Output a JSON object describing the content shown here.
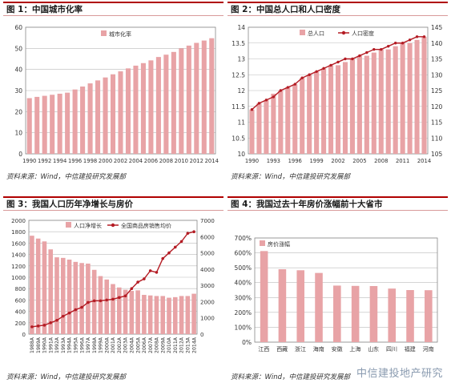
{
  "panels": [
    {
      "title": "图 1：中国城市化率",
      "source": "资料来源：Wind，中信建投研究发展部"
    },
    {
      "title": "图 2：中国总人口和人口密度",
      "source": "资料来源：Wind，中信建投研究发展部"
    },
    {
      "title": "图 3：我国人口历年净增长与房价",
      "source": "资料来源：Wind，中信建投研究发展部"
    },
    {
      "title": "图 4：我国过去十年房价涨幅前十大省市",
      "source": "资料来源：Wind，中信建投研究发展部"
    }
  ],
  "watermark": "中信建投地产研究",
  "colors": {
    "bar": "#e8a3a6",
    "line": "#b41c24",
    "rule": "#b00000"
  },
  "chart_data": [
    {
      "type": "bar",
      "legend": [
        "城市化率"
      ],
      "x": [
        1990,
        1991,
        1992,
        1993,
        1994,
        1995,
        1996,
        1997,
        1998,
        1999,
        2000,
        2001,
        2002,
        2003,
        2004,
        2005,
        2006,
        2007,
        2008,
        2009,
        2010,
        2011,
        2012,
        2013,
        2014
      ],
      "xticks": [
        "1990",
        "1992",
        "1994",
        "1996",
        "1998",
        "2000",
        "2002",
        "2004",
        "2006",
        "2008",
        "2010",
        "2012",
        "2014"
      ],
      "values": [
        26.4,
        27.0,
        27.5,
        28.0,
        28.5,
        29.0,
        30.5,
        31.9,
        33.4,
        34.8,
        36.2,
        37.7,
        39.1,
        40.5,
        41.8,
        43.0,
        44.3,
        45.9,
        47.0,
        48.3,
        50.0,
        51.3,
        52.6,
        53.7,
        54.8
      ],
      "ylim": [
        0,
        60
      ],
      "yticks": [
        0,
        10,
        20,
        30,
        40,
        50,
        60
      ]
    },
    {
      "type": "bar+line",
      "legend": [
        "总人口",
        "人口密度"
      ],
      "x": [
        1990,
        1991,
        1992,
        1993,
        1994,
        1995,
        1996,
        1997,
        1998,
        1999,
        2000,
        2001,
        2002,
        2003,
        2004,
        2005,
        2006,
        2007,
        2008,
        2009,
        2010,
        2011,
        2012,
        2013,
        2014
      ],
      "xticks": [
        "1990",
        "1993",
        "1996",
        "1999",
        "2002",
        "2005",
        "2008",
        "2011",
        "2014"
      ],
      "bar_values": [
        11.4,
        11.6,
        11.7,
        11.9,
        12.0,
        12.1,
        12.2,
        12.4,
        12.5,
        12.6,
        12.7,
        12.8,
        12.8,
        12.9,
        13.0,
        13.1,
        13.1,
        13.2,
        13.3,
        13.3,
        13.4,
        13.5,
        13.5,
        13.6,
        13.7
      ],
      "line_values": [
        119,
        121,
        122,
        123,
        125,
        126,
        127,
        129,
        130,
        131,
        132,
        133,
        134,
        135,
        135,
        136,
        137,
        138,
        138,
        139,
        140,
        140,
        141,
        142,
        142
      ],
      "ylim_left": [
        10,
        14
      ],
      "yticks_left": [
        10,
        10.5,
        11,
        11.5,
        12,
        12.5,
        13,
        13.5,
        14
      ],
      "ylim_right": [
        105,
        145
      ],
      "yticks_right": [
        105,
        110,
        115,
        120,
        125,
        130,
        135,
        140,
        145
      ]
    },
    {
      "type": "bar+line",
      "legend": [
        "人口净增长",
        "全国商品房销售均价"
      ],
      "x": [
        "1988A",
        "1989A",
        "1990A",
        "1991A",
        "1992A",
        "1993A",
        "1994A",
        "1995A",
        "1996A",
        "1997A",
        "1998A",
        "1999A",
        "2000A",
        "2001A",
        "2002A",
        "2003A",
        "2004A",
        "2005A",
        "2006A",
        "2007A",
        "2008A",
        "2009A",
        "2010A",
        "2011A",
        "2012A",
        "2013A",
        "2014A"
      ],
      "xticks": [
        "1988A",
        "1989A",
        "1990A",
        "1991A",
        "1992A",
        "1993A",
        "1994A",
        "1995A",
        "1996A",
        "1997A",
        "1998A",
        "1999A",
        "2000A",
        "2001A",
        "2002A",
        "2003A",
        "2004A",
        "2005A",
        "2006A",
        "2007A",
        "2008A",
        "2009A",
        "2010A",
        "2011A",
        "2012A",
        "2013A",
        "2014A"
      ],
      "bar_values": [
        1730,
        1680,
        1630,
        1490,
        1350,
        1340,
        1310,
        1270,
        1250,
        1240,
        1130,
        1020,
        960,
        880,
        820,
        780,
        760,
        770,
        690,
        680,
        670,
        670,
        640,
        650,
        670,
        670,
        710
      ],
      "line_values": [
        450,
        500,
        550,
        700,
        850,
        1100,
        1300,
        1500,
        1650,
        1950,
        2050,
        2050,
        2100,
        2150,
        2250,
        2350,
        2800,
        3200,
        3400,
        3900,
        3800,
        4650,
        5000,
        5350,
        5700,
        6200,
        6300
      ],
      "ylim_left": [
        0,
        2000
      ],
      "yticks_left": [
        0,
        200,
        400,
        600,
        800,
        1000,
        1200,
        1400,
        1600,
        1800,
        2000
      ],
      "ylim_right": [
        0,
        7000
      ],
      "yticks_right": [
        0,
        1000,
        2000,
        3000,
        4000,
        5000,
        6000,
        7000
      ]
    },
    {
      "type": "bar",
      "legend": [
        "房价涨幅"
      ],
      "categories": [
        "江西",
        "西藏",
        "浙江",
        "海南",
        "安徽",
        "上海",
        "山东",
        "四川",
        "福建",
        "河南"
      ],
      "values": [
        612,
        490,
        483,
        465,
        380,
        378,
        377,
        360,
        350,
        349
      ],
      "ylim": [
        0,
        700
      ],
      "yticks": [
        "0%",
        "100%",
        "200%",
        "300%",
        "400%",
        "500%",
        "600%",
        "700%"
      ]
    }
  ]
}
